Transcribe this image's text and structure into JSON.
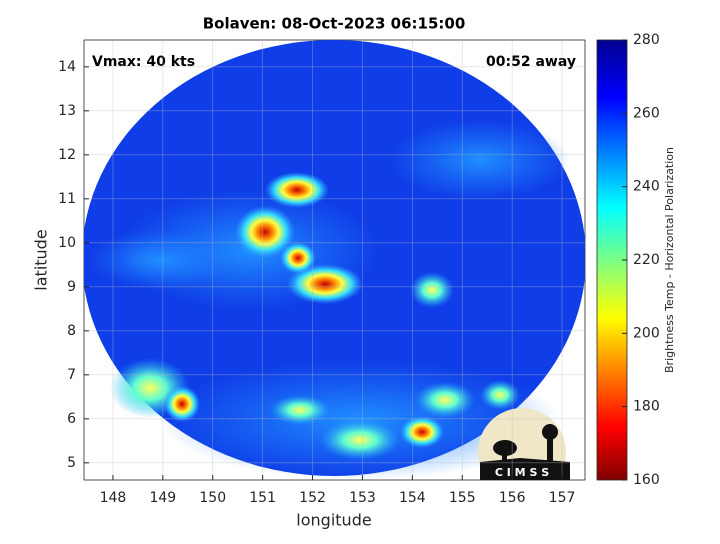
{
  "chart_data": {
    "type": "image",
    "title": "Bolaven: 08-Oct-2023 06:15:00",
    "annotations": [
      "Vmax: 40 kts",
      "00:52 away"
    ],
    "x_label": "longitude",
    "y_label": "latitude",
    "xlim": [
      147.42,
      157.46
    ],
    "xticks": [
      148,
      149,
      150,
      151,
      152,
      153,
      154,
      155,
      156,
      157
    ],
    "ylim": [
      4.61,
      14.61
    ],
    "yticks": [
      5,
      6,
      7,
      8,
      9,
      10,
      11,
      12,
      13,
      14
    ],
    "grid": true,
    "colorbar": {
      "label": "Brightness Temp - Horizontal Polarization",
      "lim": [
        160,
        280
      ],
      "ticks": [
        160,
        180,
        200,
        220,
        240,
        260,
        280
      ]
    },
    "logo": "C I M S S"
  }
}
